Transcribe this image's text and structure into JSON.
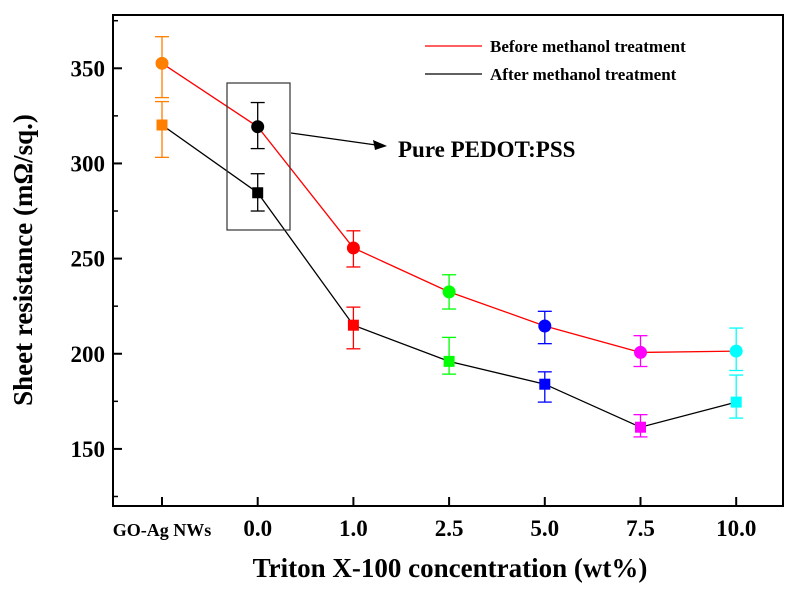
{
  "chart_data": {
    "type": "line",
    "title": "",
    "xlabel": "Triton X-100 concentration (wt%)",
    "ylabel": "Sheet resistance (mΩ/sq.)",
    "categories": [
      "GO-Ag NWs",
      "0.0",
      "1.0",
      "2.5",
      "5.0",
      "7.5",
      "10.0"
    ],
    "ylim": [
      120,
      378
    ],
    "yticks": [
      150,
      200,
      250,
      300,
      350
    ],
    "ytick_labels": [
      "150",
      "200",
      "250",
      "300",
      "350"
    ],
    "yminor_ticks": [
      125,
      175,
      225,
      275,
      325,
      375
    ],
    "grid": false,
    "legend_position": "top-right",
    "point_colors": [
      "#ff8000",
      "#000000",
      "#ff0000",
      "#00ff00",
      "#0000ff",
      "#ff00ff",
      "#00ffff"
    ],
    "series": [
      {
        "name": "Before methanol treatment",
        "line_color": "#ff0000",
        "marker": "circle",
        "values": [
          352.6,
          319.3,
          255.6,
          232.5,
          214.6,
          200.7,
          201.4
        ],
        "err_low": [
          18,
          11.5,
          10,
          9,
          9.3,
          7.4,
          10.2
        ],
        "err_high": [
          14,
          12.7,
          9,
          9,
          7.7,
          8.8,
          12.1
        ]
      },
      {
        "name": "After methanol treatment",
        "line_color": "#000000",
        "marker": "square",
        "values": [
          320.2,
          284.6,
          215,
          196,
          184,
          161.4,
          174.6
        ],
        "err_low": [
          17,
          9.6,
          12.4,
          6.7,
          9.4,
          5.1,
          8.4
        ],
        "err_high": [
          12.3,
          10,
          9.5,
          12.6,
          6.5,
          6.6,
          14.2
        ]
      }
    ],
    "annotation": {
      "text": "Pure PEDOT:PSS",
      "target_category": "0.0"
    }
  }
}
